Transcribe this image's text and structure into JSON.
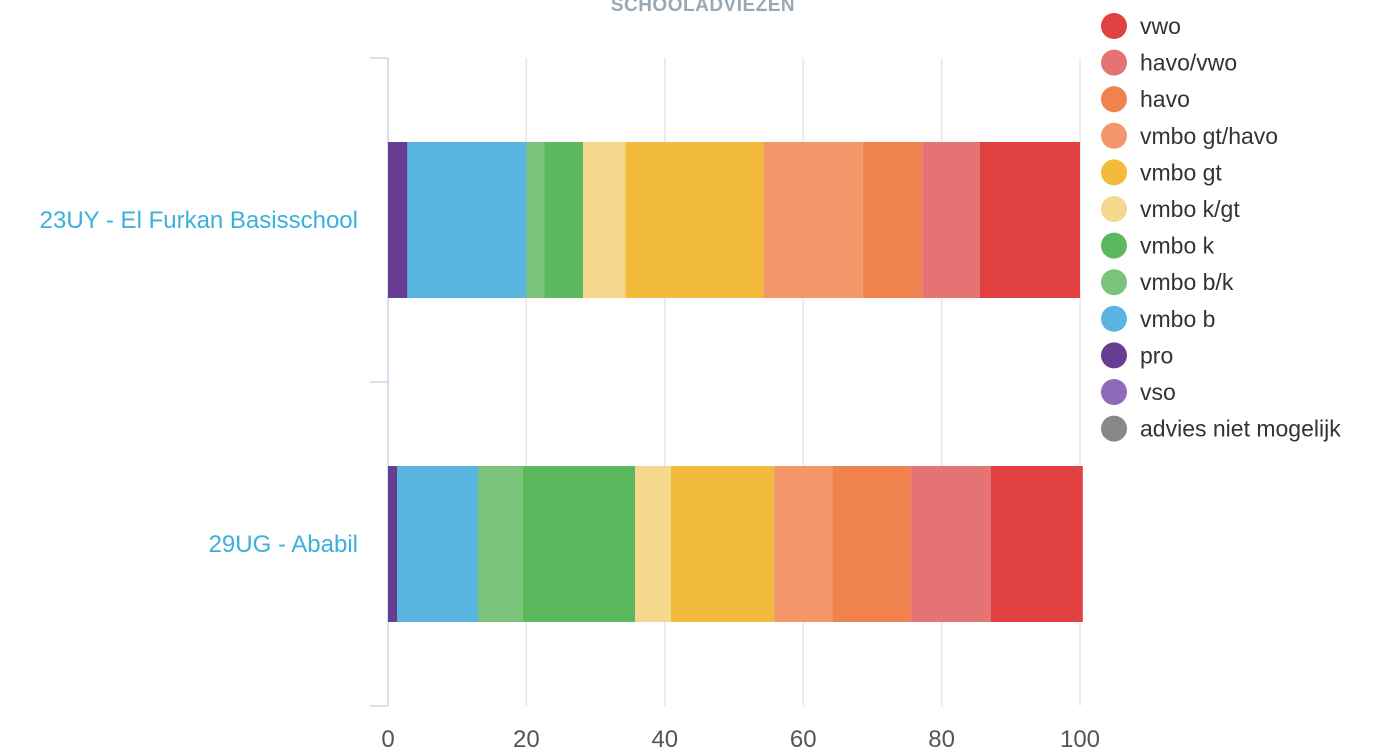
{
  "chart_data": {
    "type": "bar",
    "orientation": "horizontal",
    "stacked": true,
    "title": "SCHOOLADVIEZEN",
    "categories": [
      "23UY - El Furkan Basisschool",
      "29UG - Ababil"
    ],
    "xlim": [
      0,
      100
    ],
    "x_ticks": [
      "0",
      "20",
      "40",
      "60",
      "80",
      "100"
    ],
    "grid": true,
    "legend_position": "right",
    "legend": [
      {
        "name": "vwo",
        "color": "#e04040"
      },
      {
        "name": "havo/vwo",
        "color": "#e57373"
      },
      {
        "name": "havo",
        "color": "#f0834d"
      },
      {
        "name": "vmbo gt/havo",
        "color": "#f3976b"
      },
      {
        "name": "vmbo gt",
        "color": "#f3bb3c"
      },
      {
        "name": "vmbo k/gt",
        "color": "#f5d78e"
      },
      {
        "name": "vmbo k",
        "color": "#5cb85c"
      },
      {
        "name": "vmbo b/k",
        "color": "#7ac37a"
      },
      {
        "name": "vmbo b",
        "color": "#5ab4e0"
      },
      {
        "name": "pro",
        "color": "#663d91"
      },
      {
        "name": "vso",
        "color": "#8e6bb8"
      },
      {
        "name": "advies niet mogelijk",
        "color": "#888888"
      }
    ],
    "series": [
      {
        "name": "advies niet mogelijk",
        "color": "#888888",
        "values": [
          0,
          0
        ]
      },
      {
        "name": "vso",
        "color": "#8e6bb8",
        "values": [
          0,
          0
        ]
      },
      {
        "name": "pro",
        "color": "#663d91",
        "values": [
          2.8,
          1.3
        ]
      },
      {
        "name": "vmbo b",
        "color": "#5ab4e0",
        "values": [
          17.2,
          11.7
        ]
      },
      {
        "name": "vmbo b/k",
        "color": "#7ac37a",
        "values": [
          2.6,
          6.5
        ]
      },
      {
        "name": "vmbo k",
        "color": "#5cb85c",
        "values": [
          5.6,
          16.2
        ]
      },
      {
        "name": "vmbo k/gt",
        "color": "#f5d78e",
        "values": [
          6.1,
          5.2
        ]
      },
      {
        "name": "vmbo gt",
        "color": "#f3bb3c",
        "values": [
          20.0,
          14.9
        ]
      },
      {
        "name": "vmbo gt/havo",
        "color": "#f3976b",
        "values": [
          14.3,
          8.4
        ]
      },
      {
        "name": "havo",
        "color": "#f0834d",
        "values": [
          8.6,
          11.4
        ]
      },
      {
        "name": "havo/vwo",
        "color": "#e57373",
        "values": [
          8.3,
          11.5
        ]
      },
      {
        "name": "vwo",
        "color": "#e04040",
        "values": [
          14.5,
          13.3
        ]
      }
    ]
  }
}
